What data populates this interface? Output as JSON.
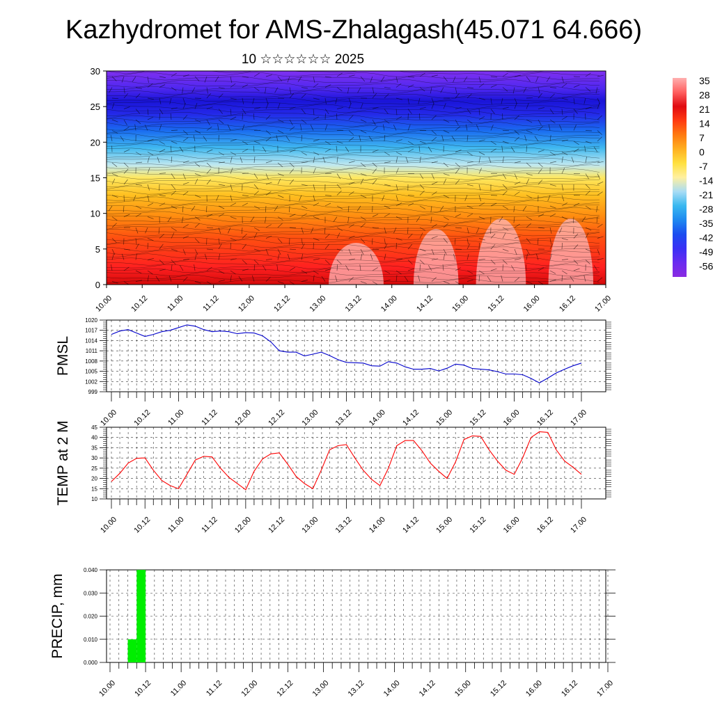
{
  "title": "Kazhydromet for AMS-Zhalagash(45.071 64.666)",
  "subtitle": "10 ☆☆☆☆☆☆ 2025",
  "time_ticks": [
    "10.00",
    "10.12",
    "11.00",
    "11.12",
    "12.00",
    "12.12",
    "13.00",
    "13.12",
    "14.00",
    "14.12",
    "15.00",
    "15.12",
    "16.00",
    "16.12",
    "17.00"
  ],
  "colors": {
    "pmsl_line": "#0000cc",
    "temp_line": "#ff0000",
    "precip_bar": "#00ee00",
    "colorbar": [
      "#8a2be2",
      "#6a2bf0",
      "#3a30f5",
      "#1b4cf0",
      "#1e88f0",
      "#38b8f0",
      "#a8dcf5",
      "#fff0a0",
      "#ffe040",
      "#ffb020",
      "#ff7a10",
      "#ff3a10",
      "#e00a10",
      "#ff6060",
      "#ffb0b0"
    ]
  },
  "colorbar": {
    "labels": [
      "35",
      "28",
      "21",
      "14",
      "7",
      "0",
      "-7",
      "-14",
      "-21",
      "-28",
      "-35",
      "-42",
      "-49",
      "-56"
    ]
  },
  "chart_data": [
    {
      "type": "heatmap",
      "name": "vertical-cross-section",
      "x_ticks": [
        "10.00",
        "10.12",
        "11.00",
        "11.12",
        "12.00",
        "12.12",
        "13.00",
        "13.12",
        "14.00",
        "14.12",
        "15.00",
        "15.12",
        "16.00",
        "16.12",
        "17.00"
      ],
      "ylim": [
        0,
        30
      ],
      "y_ticks": [
        0,
        5,
        10,
        15,
        20,
        25,
        30
      ],
      "levels": [
        0,
        2,
        4,
        6,
        8,
        10,
        12,
        14,
        16,
        18,
        20,
        22,
        24,
        26,
        28,
        30
      ],
      "values_description_levels_to_temperature": [
        24,
        20,
        16,
        12,
        8,
        3,
        -2,
        -8,
        -18,
        -30,
        -42,
        -52,
        -56,
        -55,
        -50,
        -48
      ]
    },
    {
      "type": "line",
      "name": "PMSL",
      "ylabel": "PMSL",
      "ylim": [
        999,
        1020
      ],
      "y_ticks": [
        999,
        1002,
        1005,
        1008,
        1011,
        1014,
        1017,
        1020
      ],
      "x": [
        0,
        1,
        2,
        3,
        4,
        5,
        6,
        7,
        8,
        9,
        10,
        11,
        12,
        13,
        14,
        15,
        16,
        17,
        18,
        19,
        20,
        21,
        22,
        23,
        24,
        25,
        26,
        27,
        28,
        29,
        30,
        31,
        32,
        33,
        34,
        35,
        36,
        37,
        38,
        39,
        40,
        41,
        42,
        43,
        44,
        45,
        46,
        47,
        48,
        49,
        50,
        51,
        52,
        53,
        54,
        55,
        56
      ],
      "values": [
        1015.8,
        1016.8,
        1017.2,
        1016.2,
        1015.2,
        1015.8,
        1016.6,
        1017.0,
        1017.8,
        1018.6,
        1018.2,
        1017.2,
        1016.6,
        1016.8,
        1016.6,
        1016.0,
        1016.3,
        1016.2,
        1015.4,
        1013.6,
        1011.0,
        1010.6,
        1010.6,
        1009.5,
        1010.0,
        1010.6,
        1009.6,
        1008.4,
        1007.6,
        1007.5,
        1007.4,
        1006.6,
        1006.5,
        1007.8,
        1007.4,
        1006.3,
        1005.6,
        1005.6,
        1005.8,
        1005.1,
        1005.9,
        1007.1,
        1006.8,
        1005.8,
        1005.6,
        1005.4,
        1004.9,
        1004.2,
        1004.2,
        1004.0,
        1002.9,
        1001.6,
        1003.0,
        1004.5,
        1005.6,
        1006.6,
        1007.4
      ],
      "xlim": [
        0,
        56
      ]
    },
    {
      "type": "line",
      "name": "TEMP at 2 M",
      "ylabel": "TEMP at 2 M",
      "ylim": [
        10,
        45
      ],
      "y_ticks": [
        10,
        15,
        20,
        25,
        30,
        35,
        40,
        45
      ],
      "x": [
        0,
        1,
        2,
        3,
        4,
        5,
        6,
        7,
        8,
        9,
        10,
        11,
        12,
        13,
        14,
        15,
        16,
        17,
        18,
        19,
        20,
        21,
        22,
        23,
        24,
        25,
        26,
        27,
        28,
        29,
        30,
        31,
        32,
        33,
        34,
        35,
        36,
        37,
        38,
        39,
        40,
        41,
        42,
        43,
        44,
        45,
        46,
        47,
        48,
        49,
        50,
        51,
        52,
        53,
        54,
        55,
        56
      ],
      "values": [
        18.5,
        22.5,
        27.5,
        29.8,
        30.0,
        24.0,
        19.0,
        16.5,
        15.0,
        22.0,
        29.0,
        30.8,
        30.5,
        25.0,
        20.5,
        17.5,
        14.5,
        23.5,
        29.5,
        32.0,
        32.5,
        27.0,
        21.0,
        17.5,
        15.0,
        24.0,
        34.0,
        36.0,
        36.5,
        30.0,
        24.0,
        19.5,
        16.5,
        25.0,
        36.0,
        38.5,
        38.5,
        33.5,
        27.5,
        23.5,
        20.0,
        28.0,
        39.0,
        40.8,
        40.5,
        34.0,
        28.5,
        24.0,
        22.0,
        30.0,
        40.0,
        42.8,
        42.5,
        34.0,
        28.5,
        25.5,
        22.0
      ],
      "xlim": [
        0,
        56
      ]
    },
    {
      "type": "bar",
      "name": "PRECIP, mm",
      "ylabel": "PRECIP, mm",
      "ylim": [
        0.0,
        0.04
      ],
      "y_ticks": [
        "0.000",
        "0.010",
        "0.020",
        "0.030",
        "0.040"
      ],
      "bars": [
        {
          "x0": 2.0,
          "x1": 3.0,
          "value": 0.01
        },
        {
          "x0": 3.0,
          "x1": 4.0,
          "value": 0.04
        }
      ],
      "xlim": [
        0,
        56
      ]
    }
  ]
}
